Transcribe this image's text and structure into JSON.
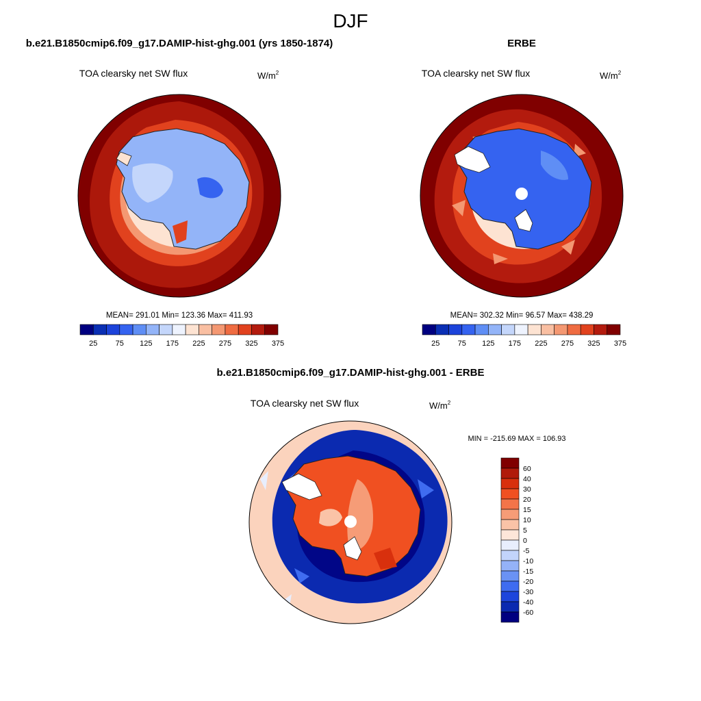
{
  "figure": {
    "season": "DJF",
    "model_panel_title": "b.e21.B1850cmip6.f09_g17.DAMIP-hist-ghg.001 (yrs 1850-1874)",
    "obs_panel_title": "ERBE",
    "diff_panel_title": "b.e21.B1850cmip6.f09_g17.DAMIP-hist-ghg.001 - ERBE"
  },
  "panels": {
    "model": {
      "variable": "TOA clearsky net SW flux",
      "units_base": "W/m",
      "units_exp": "2",
      "stats": "MEAN= 291.01  Min= 123.36  Max= 411.93"
    },
    "obs": {
      "variable": "TOA clearsky net SW flux",
      "units_base": "W/m",
      "units_exp": "2",
      "stats": "MEAN= 302.32  Min=  96.57  Max= 438.29"
    },
    "diff": {
      "variable": "TOA clearsky net SW flux",
      "units_base": "W/m",
      "units_exp": "2",
      "stats": "MIN = -215.69 MAX = 106.93"
    }
  },
  "colorbars": {
    "absolute": {
      "labels": [
        "25",
        "75",
        "125",
        "175",
        "225",
        "275",
        "325",
        "375"
      ],
      "colors": [
        "#000080",
        "#0a2fb4",
        "#1c43da",
        "#3563f0",
        "#5f8ef5",
        "#93b4f8",
        "#c4d6fb",
        "#eef3fe",
        "#fde3d2",
        "#f9bfa2",
        "#f49872",
        "#ef6c42",
        "#e1421e",
        "#b31b0e",
        "#800000"
      ]
    },
    "difference": {
      "labels": [
        "60",
        "40",
        "30",
        "20",
        "15",
        "10",
        "5",
        "0",
        "-5",
        "-10",
        "-15",
        "-20",
        "-30",
        "-40",
        "-60"
      ],
      "colors": [
        "#800000",
        "#b01a0a",
        "#d8300d",
        "#f05021",
        "#f37449",
        "#f69c77",
        "#fac3a7",
        "#fde6d9",
        "#e8eefd",
        "#c2d4fb",
        "#94b2f8",
        "#6a92f4",
        "#3f6cf0",
        "#1d45dc",
        "#0b2ab0",
        "#000080"
      ]
    }
  }
}
